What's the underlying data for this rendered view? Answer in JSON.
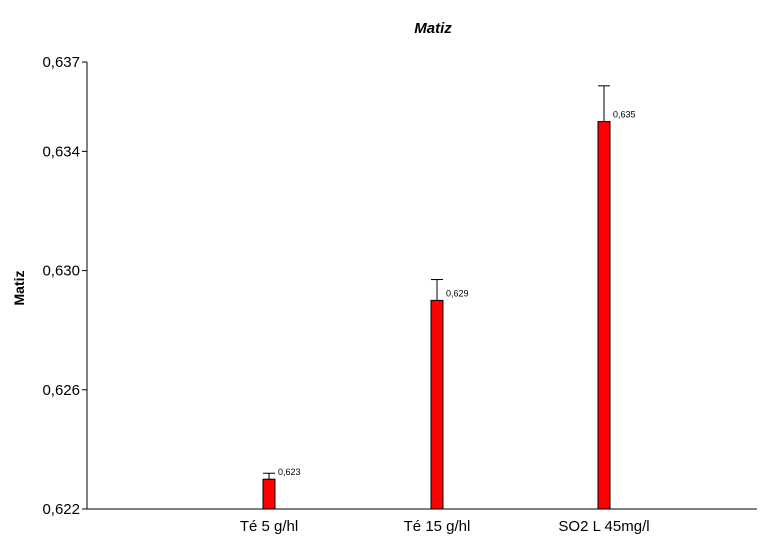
{
  "chart_data": {
    "type": "bar",
    "title": "Matiz",
    "xlabel": "",
    "ylabel": "Matiz",
    "categories": [
      "Té 5 g/hl",
      "Té 15 g/hl",
      "SO2 L 45mg/l"
    ],
    "values": [
      0.623,
      0.629,
      0.635
    ],
    "value_labels": [
      "0,623",
      "0,629",
      "0,635"
    ],
    "error_upper": [
      0.6232,
      0.6297,
      0.6362
    ],
    "ylim": [
      0.622,
      0.637
    ],
    "yticks": [
      0.622,
      0.626,
      0.63,
      0.634,
      0.637
    ],
    "ytick_labels": [
      "0,622",
      "0,626",
      "0,630",
      "0,634",
      "0,637"
    ],
    "grid": false,
    "legend": "none",
    "bar_color": "#ff0000"
  }
}
